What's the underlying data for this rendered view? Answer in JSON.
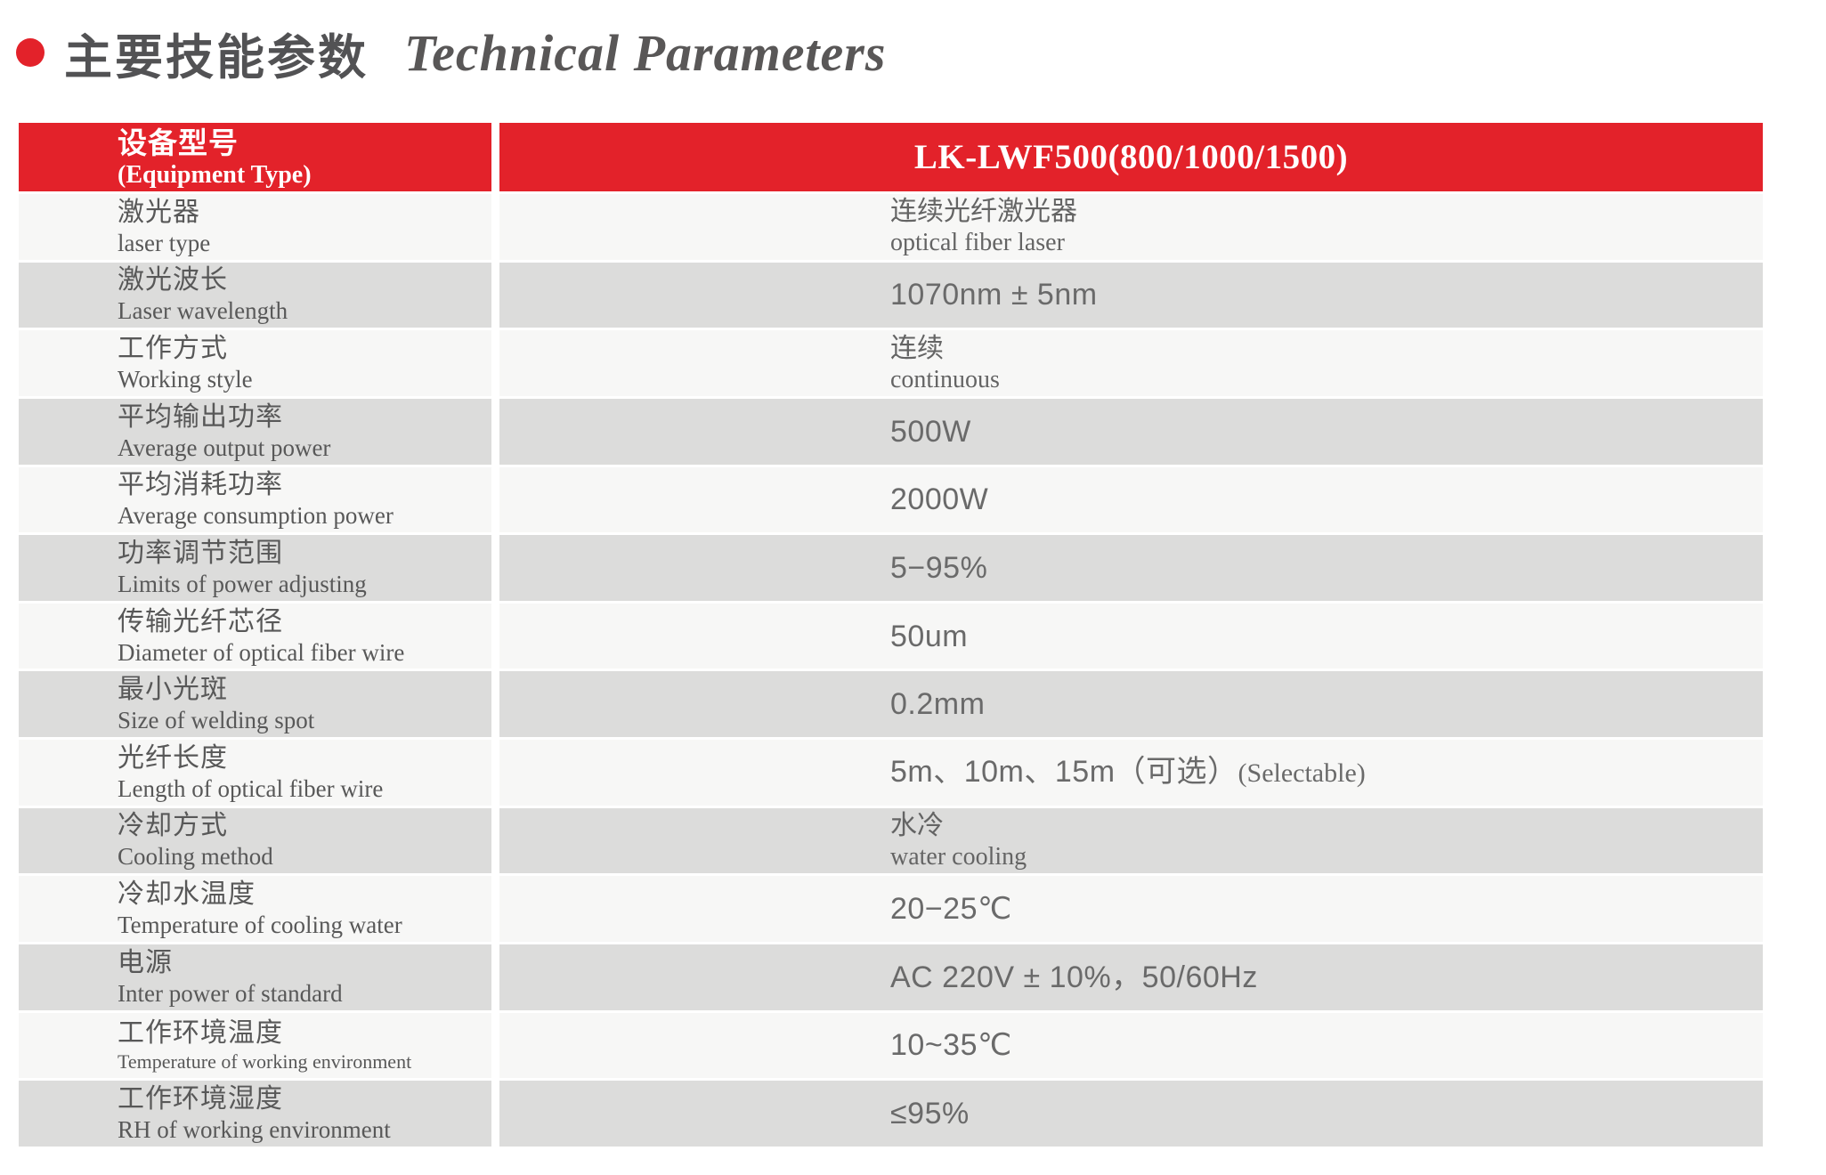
{
  "title": {
    "zh": "主要技能参数",
    "en": "Technical Parameters"
  },
  "colors": {
    "accent_red": "#e3222a",
    "row_light": "#f7f7f6",
    "row_dark": "#dcdcdb",
    "header_text": "#ffffff",
    "label_text": "#585858",
    "value_text": "#6a6a6a",
    "title_text": "#525254"
  },
  "table": {
    "header": {
      "label_zh": "设备型号",
      "label_en": "(Equipment Type)",
      "value": "LK-LWF500(800/1000/1500)"
    },
    "rows": [
      {
        "label_zh": "激光器",
        "label_en": "laser type",
        "value_zh": "连续光纤激光器",
        "value_en": "optical fiber laser"
      },
      {
        "label_zh": "激光波长",
        "label_en": "Laser wavelength",
        "value": "1070nm ± 5nm"
      },
      {
        "label_zh": "工作方式",
        "label_en": "Working style",
        "value_zh": "连续",
        "value_en": "continuous"
      },
      {
        "label_zh": "平均输出功率",
        "label_en": "Average output power",
        "value": "500W"
      },
      {
        "label_zh": "平均消耗功率",
        "label_en": "Average consumption power",
        "value": "2000W"
      },
      {
        "label_zh": "功率调节范围",
        "label_en": "Limits of power adjusting",
        "value": "5−95%"
      },
      {
        "label_zh": "传输光纤芯径",
        "label_en": "Diameter of optical fiber wire",
        "value": "50um"
      },
      {
        "label_zh": "最小光斑",
        "label_en": "Size of welding spot",
        "value": "0.2mm"
      },
      {
        "label_zh": "光纤长度",
        "label_en": "Length of optical fiber wire",
        "value": "5m、10m、15m（可选）",
        "value_suffix": "(Selectable)"
      },
      {
        "label_zh": "冷却方式",
        "label_en": "Cooling method",
        "value_zh": "水冷",
        "value_en": "water cooling"
      },
      {
        "label_zh": "冷却水温度",
        "label_en": "Temperature of cooling water",
        "value": "20−25℃"
      },
      {
        "label_zh": "电源",
        "label_en": "Inter power of standard",
        "value": "AC 220V ± 10%，50/60Hz"
      },
      {
        "label_zh": "工作环境温度",
        "label_en": "Temperature of working environment",
        "value": "10~35℃"
      },
      {
        "label_zh": "工作环境湿度",
        "label_en": "RH of working environment",
        "value": "≤95%"
      }
    ]
  }
}
